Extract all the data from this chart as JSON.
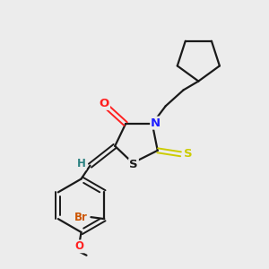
{
  "background_color": "#ececec",
  "bond_color": "#1a1a1a",
  "atom_colors": {
    "O": "#ff2020",
    "N": "#2020ff",
    "S_thioxo": "#cccc00",
    "S_ring": "#1a1a1a",
    "Br": "#cc5500",
    "H": "#2a8080",
    "C": "#1a1a1a"
  },
  "figsize": [
    3.0,
    3.0
  ],
  "dpi": 100
}
